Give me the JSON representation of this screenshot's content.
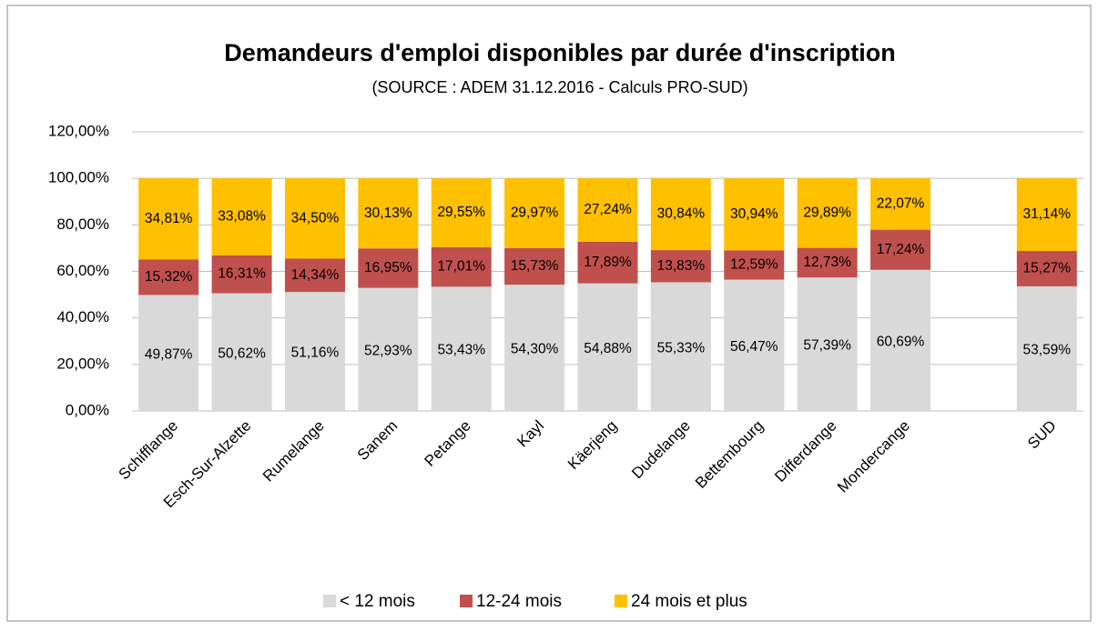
{
  "chart_data": {
    "type": "stacked_bar",
    "title": "Demandeurs d'emploi disponibles par durée d'inscription",
    "subtitle": "(SOURCE : ADEM 31.12.2016 - Calculs PRO-SUD)",
    "categories": [
      "Schifflange",
      "Esch-Sur-Alzette",
      "Rumelange",
      "Sanem",
      "Petange",
      "Kayl",
      "Käerjeng",
      "Dudelange",
      "Bettembourg",
      "Differdange",
      "Mondercange",
      null,
      "SUD"
    ],
    "series": [
      {
        "name": "< 12 mois",
        "color": "#d9d9d9",
        "values": [
          49.87,
          50.62,
          51.16,
          52.93,
          53.43,
          54.3,
          54.88,
          55.33,
          56.47,
          57.39,
          60.69,
          null,
          53.59
        ],
        "value_labels": [
          "49,87%",
          "50,62%",
          "51,16%",
          "52,93%",
          "53,43%",
          "54,30%",
          "54,88%",
          "55,33%",
          "56,47%",
          "57,39%",
          "60,69%",
          null,
          "53,59%"
        ]
      },
      {
        "name": "12-24 mois",
        "color": "#c0504d",
        "values": [
          15.32,
          16.31,
          14.34,
          16.95,
          17.01,
          15.73,
          17.89,
          13.83,
          12.59,
          12.73,
          17.24,
          null,
          15.27
        ],
        "value_labels": [
          "15,32%",
          "16,31%",
          "14,34%",
          "16,95%",
          "17,01%",
          "15,73%",
          "17,89%",
          "13,83%",
          "12,59%",
          "12,73%",
          "17,24%",
          null,
          "15,27%"
        ]
      },
      {
        "name": "24 mois et plus",
        "color": "#ffc000",
        "values": [
          34.81,
          33.08,
          34.5,
          30.13,
          29.55,
          29.97,
          27.24,
          30.84,
          30.94,
          29.89,
          22.07,
          null,
          31.14
        ],
        "value_labels": [
          "34,81%",
          "33,08%",
          "34,50%",
          "30,13%",
          "29,55%",
          "29,97%",
          "27,24%",
          "30,84%",
          "30,94%",
          "29,89%",
          "22,07%",
          null,
          "31,14%"
        ]
      }
    ],
    "ylim": [
      0,
      120
    ],
    "yticks": [
      {
        "value": 0,
        "label": "0,00%"
      },
      {
        "value": 20,
        "label": "20,00%"
      },
      {
        "value": 40,
        "label": "40,00%"
      },
      {
        "value": 60,
        "label": "60,00%"
      },
      {
        "value": 80,
        "label": "80,00%"
      },
      {
        "value": 100,
        "label": "100,00%"
      },
      {
        "value": 120,
        "label": "120,00%"
      }
    ],
    "grid": true,
    "legend": "bottom"
  }
}
